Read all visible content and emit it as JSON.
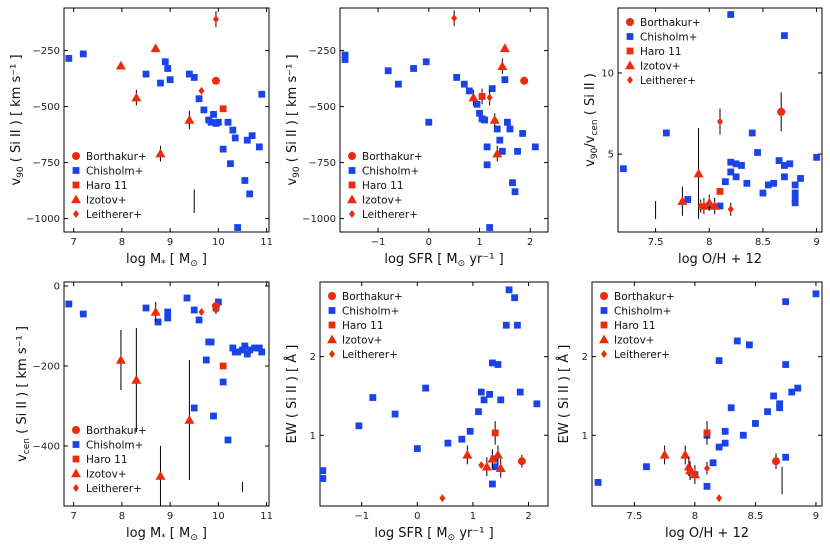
{
  "colors": {
    "sample_blue": "#1a44e8",
    "sample_red": "#ee2a0c",
    "errorbar": "#000000"
  },
  "legend": [
    {
      "name": "Borthakur+",
      "marker": "circle",
      "color": "#ee2a0c"
    },
    {
      "name": "Chisholm+",
      "marker": "square",
      "color": "#1a44e8"
    },
    {
      "name": "Haro 11",
      "marker": "square",
      "color": "#ee2a0c"
    },
    {
      "name": "Izotov+",
      "marker": "triangle",
      "color": "#ee2a0c"
    },
    {
      "name": "Leitherer+",
      "marker": "diamond",
      "color": "#ee2a0c"
    }
  ],
  "chart_data": [
    {
      "id": "p1",
      "type": "scatter",
      "xlabel": "log M",
      "xlabel_sub": "*",
      "xlabel_unit": "[ M",
      "xlabel_unit_sub": "⊙",
      "xlabel_unit_end": "]",
      "ylabel": "v",
      "ylabel_sub": "90",
      "ylabel_rest": "( Si II ) [ km s⁻¹ ]",
      "xlim": [
        6.8,
        11.05
      ],
      "ylim": [
        -1060,
        -60
      ],
      "xticks": [
        7,
        8,
        9,
        10,
        11
      ],
      "yticks": [
        -1000,
        -750,
        -500,
        -250
      ],
      "legend_pos": "bottom-left",
      "chisholm": [
        [
          6.9,
          -285
        ],
        [
          7.2,
          -265
        ],
        [
          8.5,
          -355
        ],
        [
          8.8,
          -395
        ],
        [
          8.9,
          -300
        ],
        [
          8.95,
          -330
        ],
        [
          9.0,
          -380
        ],
        [
          9.4,
          -355
        ],
        [
          9.5,
          -370
        ],
        [
          9.6,
          -465
        ],
        [
          9.7,
          -515
        ],
        [
          9.8,
          -560
        ],
        [
          9.85,
          -570
        ],
        [
          9.9,
          -535
        ],
        [
          9.95,
          -575
        ],
        [
          10.0,
          -570
        ],
        [
          10.1,
          -690
        ],
        [
          10.2,
          -570
        ],
        [
          10.25,
          -755
        ],
        [
          10.3,
          -605
        ],
        [
          10.35,
          -640
        ],
        [
          10.4,
          -1040
        ],
        [
          10.55,
          -830
        ],
        [
          10.6,
          -650
        ],
        [
          10.65,
          -890
        ],
        [
          10.7,
          -630
        ],
        [
          10.85,
          -680
        ],
        [
          10.9,
          -445
        ]
      ],
      "borthakur": [
        [
          9.95,
          -385,
          0
        ]
      ],
      "haro11": [
        [
          10.1,
          -510,
          0
        ]
      ],
      "izotov": [
        [
          7.98,
          -318,
          0
        ],
        [
          8.3,
          -460,
          35
        ],
        [
          8.7,
          -240,
          0
        ],
        [
          8.8,
          -710,
          35
        ],
        [
          9.4,
          -560,
          40
        ]
      ],
      "leitherer": [
        [
          9.65,
          -430,
          0
        ],
        [
          9.95,
          -110,
          35
        ]
      ],
      "vlines": [
        [
          9.5,
          -975,
          -870
        ]
      ]
    },
    {
      "id": "p2",
      "type": "scatter",
      "xlabel": "log SFR",
      "xlabel_unit": "[ M",
      "xlabel_unit_sub": "⊙",
      "xlabel_unit_end": "yr⁻¹ ]",
      "ylabel": "v",
      "ylabel_sub": "90",
      "ylabel_rest": "( Si II ) [ km s⁻¹ ]",
      "xlim": [
        -1.75,
        2.35
      ],
      "ylim": [
        -1060,
        -60
      ],
      "xticks": [
        -1,
        0,
        1,
        2
      ],
      "yticks": [
        -1000,
        -750,
        -500,
        -250
      ],
      "legend_pos": "bottom-left",
      "chisholm": [
        [
          -1.65,
          -270
        ],
        [
          -1.65,
          -290
        ],
        [
          -0.8,
          -340
        ],
        [
          -0.6,
          -400
        ],
        [
          -0.3,
          -330
        ],
        [
          -0.05,
          -300
        ],
        [
          0,
          -570
        ],
        [
          0.55,
          -370
        ],
        [
          0.7,
          -400
        ],
        [
          0.8,
          -430
        ],
        [
          0.95,
          -490
        ],
        [
          1.0,
          -530
        ],
        [
          1.05,
          -555
        ],
        [
          1.1,
          -560
        ],
        [
          1.15,
          -680
        ],
        [
          1.15,
          -760
        ],
        [
          1.2,
          -1040
        ],
        [
          1.25,
          -420
        ],
        [
          1.35,
          -600
        ],
        [
          1.4,
          -650
        ],
        [
          1.45,
          -700
        ],
        [
          1.5,
          -380
        ],
        [
          1.55,
          -570
        ],
        [
          1.6,
          -600
        ],
        [
          1.65,
          -840
        ],
        [
          1.7,
          -880
        ],
        [
          1.75,
          -700
        ],
        [
          1.85,
          -620
        ],
        [
          2.1,
          -680
        ]
      ],
      "borthakur": [
        [
          1.88,
          -385,
          0
        ]
      ],
      "haro11": [
        [
          1.05,
          -455,
          35
        ]
      ],
      "izotov": [
        [
          0.88,
          -460,
          35
        ],
        [
          1.3,
          -560,
          30
        ],
        [
          1.35,
          -710,
          35
        ],
        [
          1.45,
          -320,
          35
        ],
        [
          1.5,
          -240,
          0
        ]
      ],
      "leitherer": [
        [
          0.5,
          -105,
          35
        ],
        [
          1.2,
          -460,
          35
        ]
      ],
      "vlines": []
    },
    {
      "id": "p3",
      "type": "scatter",
      "xlabel": "log O/H + 12",
      "ylabel": "v",
      "ylabel_sub": "90",
      "ylabel_mid": "/v",
      "ylabel_sub2": "cen",
      "ylabel_rest": "( Si II )",
      "xlim": [
        7.15,
        9.05
      ],
      "ylim": [
        0.2,
        14.0
      ],
      "xticks": [
        7.5,
        8.0,
        8.5,
        9.0
      ],
      "yticks": [
        5,
        10
      ],
      "legend_pos": "top-left",
      "chisholm": [
        [
          7.2,
          4.1
        ],
        [
          7.6,
          6.3
        ],
        [
          7.8,
          2.2
        ],
        [
          8.0,
          1.8
        ],
        [
          8.1,
          1.8
        ],
        [
          8.15,
          3.3
        ],
        [
          8.2,
          4.5
        ],
        [
          8.2,
          3.9
        ],
        [
          8.2,
          13.6
        ],
        [
          8.25,
          4.4
        ],
        [
          8.25,
          3.6
        ],
        [
          8.3,
          4.3
        ],
        [
          8.35,
          3.2
        ],
        [
          8.4,
          6.3
        ],
        [
          8.45,
          5.1
        ],
        [
          8.5,
          2.6
        ],
        [
          8.55,
          3.1
        ],
        [
          8.6,
          3.2
        ],
        [
          8.65,
          4.6
        ],
        [
          8.7,
          4.3
        ],
        [
          8.7,
          3.6
        ],
        [
          8.7,
          12.3
        ],
        [
          8.75,
          4.4
        ],
        [
          8.8,
          3.1
        ],
        [
          8.8,
          2.6
        ],
        [
          8.8,
          2.2
        ],
        [
          8.8,
          2.0
        ],
        [
          8.85,
          3.5
        ],
        [
          9.0,
          4.8
        ]
      ],
      "borthakur": [
        [
          8.67,
          7.6,
          1.2
        ]
      ],
      "haro11": [
        [
          8.1,
          2.7,
          0
        ]
      ],
      "izotov": [
        [
          7.75,
          2.1,
          0.9
        ],
        [
          7.9,
          3.8,
          2.8
        ],
        [
          7.95,
          1.8,
          0.5
        ],
        [
          8.0,
          2.0,
          0.5
        ],
        [
          8.05,
          1.8,
          0.5
        ]
      ],
      "leitherer": [
        [
          7.92,
          1.8,
          0.4
        ],
        [
          8.1,
          7.0,
          0.8
        ],
        [
          8.2,
          1.6,
          0.4
        ]
      ],
      "vlines": [
        [
          7.5,
          1.0,
          2.1
        ]
      ]
    },
    {
      "id": "p4",
      "type": "scatter",
      "xlabel": "log M",
      "xlabel_sub": "*",
      "xlabel_unit": "[ M",
      "xlabel_unit_sub": "⊙",
      "xlabel_unit_end": "]",
      "ylabel": "v",
      "ylabel_sub": "cen",
      "ylabel_rest": "( Si II ) [ km s⁻¹ ]",
      "xlim": [
        6.8,
        11.05
      ],
      "ylim": [
        -550,
        10
      ],
      "xticks": [
        7,
        8,
        9,
        10,
        11
      ],
      "yticks": [
        -400,
        -200,
        0
      ],
      "legend_pos": "bottom-left",
      "chisholm": [
        [
          6.9,
          -45
        ],
        [
          7.2,
          -70
        ],
        [
          8.5,
          -55
        ],
        [
          8.75,
          -90
        ],
        [
          8.95,
          -65
        ],
        [
          8.95,
          -80
        ],
        [
          9.35,
          -30
        ],
        [
          9.5,
          -60
        ],
        [
          9.5,
          -305
        ],
        [
          9.6,
          -85
        ],
        [
          9.75,
          -185
        ],
        [
          9.8,
          -140
        ],
        [
          9.85,
          -140
        ],
        [
          9.9,
          -325
        ],
        [
          9.95,
          -55
        ],
        [
          10.0,
          -40
        ],
        [
          10.1,
          -240
        ],
        [
          10.2,
          -385
        ],
        [
          10.3,
          -155
        ],
        [
          10.35,
          -165
        ],
        [
          10.4,
          -165
        ],
        [
          10.5,
          -160
        ],
        [
          10.55,
          -150
        ],
        [
          10.6,
          -170
        ],
        [
          10.65,
          -160
        ],
        [
          10.75,
          -155
        ],
        [
          10.85,
          -155
        ],
        [
          10.9,
          -165
        ]
      ],
      "borthakur": [
        [
          9.95,
          -50,
          0
        ]
      ],
      "haro11": [
        [
          10.1,
          -200,
          0
        ]
      ],
      "izotov": [
        [
          7.98,
          -185,
          75
        ],
        [
          8.3,
          -235,
          130
        ],
        [
          8.7,
          -65,
          25
        ],
        [
          8.8,
          -475,
          75
        ],
        [
          9.4,
          -335,
          150
        ]
      ],
      "leitherer": [
        [
          9.65,
          -65,
          0
        ],
        [
          9.95,
          -60,
          10
        ]
      ],
      "vlines": [
        [
          10.5,
          -515,
          -490
        ]
      ]
    },
    {
      "id": "p5",
      "type": "scatter",
      "xlabel": "log SFR",
      "xlabel_unit": "[ M",
      "xlabel_unit_sub": "⊙",
      "xlabel_unit_end": "yr⁻¹ ]",
      "ylabel": "EW ( Si II ) [ Å ]",
      "xlim": [
        -1.75,
        2.35
      ],
      "ylim": [
        0.1,
        2.95
      ],
      "xticks": [
        -1,
        0,
        1,
        2
      ],
      "yticks": [
        1,
        2
      ],
      "legend_pos": "top-left",
      "chisholm": [
        [
          -1.7,
          0.55
        ],
        [
          -1.7,
          0.45
        ],
        [
          -1.05,
          1.12
        ],
        [
          -0.8,
          1.48
        ],
        [
          -0.4,
          1.27
        ],
        [
          0,
          0.83
        ],
        [
          0.15,
          1.6
        ],
        [
          0.55,
          0.9
        ],
        [
          0.8,
          0.95
        ],
        [
          0.95,
          1.05
        ],
        [
          1.1,
          1.3
        ],
        [
          1.15,
          1.55
        ],
        [
          1.2,
          1.45
        ],
        [
          1.3,
          1.52
        ],
        [
          1.35,
          1.92
        ],
        [
          1.4,
          0.6
        ],
        [
          1.45,
          1.9
        ],
        [
          1.5,
          1.45
        ],
        [
          1.6,
          2.4
        ],
        [
          1.65,
          2.85
        ],
        [
          1.75,
          2.75
        ],
        [
          1.8,
          2.4
        ],
        [
          1.85,
          1.55
        ],
        [
          2.15,
          1.4
        ],
        [
          1.35,
          0.38
        ],
        [
          1.38,
          0.7
        ]
      ],
      "borthakur": [
        [
          1.88,
          0.67,
          0.08
        ]
      ],
      "haro11": [
        [
          1.4,
          1.03,
          0.15
        ]
      ],
      "izotov": [
        [
          0.9,
          0.75,
          0.12
        ],
        [
          1.25,
          0.6,
          0.12
        ],
        [
          1.35,
          0.7,
          0.12
        ],
        [
          1.45,
          0.75,
          0.12
        ],
        [
          1.5,
          0.58,
          0.12
        ]
      ],
      "leitherer": [
        [
          0.45,
          0.2,
          0
        ],
        [
          1.15,
          0.62,
          0
        ]
      ],
      "vlines": []
    },
    {
      "id": "p6",
      "type": "scatter",
      "xlabel": "log O/H + 12",
      "ylabel": "EW ( Si II ) [ Å ]",
      "xlim": [
        7.15,
        9.05
      ],
      "ylim": [
        0.1,
        2.95
      ],
      "xticks": [
        7.5,
        8.0,
        8.5,
        9.0
      ],
      "yticks": [
        1,
        2
      ],
      "legend_pos": "top-left",
      "chisholm": [
        [
          7.2,
          0.4
        ],
        [
          7.6,
          0.6
        ],
        [
          8.0,
          0.5
        ],
        [
          8.1,
          0.35
        ],
        [
          8.1,
          1.0
        ],
        [
          8.15,
          0.65
        ],
        [
          8.2,
          1.95
        ],
        [
          8.2,
          0.85
        ],
        [
          8.25,
          0.9
        ],
        [
          8.25,
          1.05
        ],
        [
          8.3,
          1.35
        ],
        [
          8.35,
          2.2
        ],
        [
          8.4,
          1.0
        ],
        [
          8.45,
          2.15
        ],
        [
          8.5,
          1.15
        ],
        [
          8.6,
          1.3
        ],
        [
          8.65,
          1.5
        ],
        [
          8.7,
          1.35
        ],
        [
          8.7,
          1.4
        ],
        [
          8.75,
          1.9
        ],
        [
          8.75,
          2.7
        ],
        [
          8.8,
          1.55
        ],
        [
          8.85,
          1.6
        ],
        [
          9.0,
          2.8
        ],
        [
          8.75,
          0.72
        ]
      ],
      "borthakur": [
        [
          8.67,
          0.67,
          0.1
        ]
      ],
      "haro11": [
        [
          8.1,
          1.03,
          0.15
        ]
      ],
      "izotov": [
        [
          7.75,
          0.75,
          0.12
        ],
        [
          7.92,
          0.75,
          0.12
        ],
        [
          7.95,
          0.6,
          0.12
        ],
        [
          8.0,
          0.5,
          0.12
        ],
        [
          7.96,
          0.55,
          0.12
        ]
      ],
      "leitherer": [
        [
          8.1,
          0.58,
          0.08
        ],
        [
          8.2,
          0.2,
          0
        ]
      ],
      "vlines": [
        [
          8.72,
          0.25,
          0.6
        ]
      ]
    }
  ]
}
